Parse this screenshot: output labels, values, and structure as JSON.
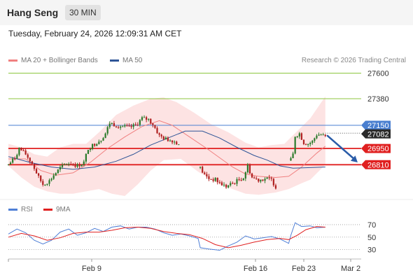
{
  "header": {
    "title": "Hang Seng",
    "interval": "30 MIN"
  },
  "subtitle": "Tuesday, February 24, 2026 12:09:31 AM CET",
  "legend": {
    "bollinger": {
      "label": "MA 20 + Bollinger Bands",
      "color": "#f08080"
    },
    "ma50": {
      "label": "MA 50",
      "color": "#2f5597"
    },
    "rsi": {
      "label": "RSI",
      "color": "#4f7fd6"
    },
    "rsi_ma": {
      "label": "9MA",
      "color": "#e02020"
    }
  },
  "credit": "Research © 2026 Trading Central",
  "colors": {
    "resistance": "#8cc63f",
    "pivot": "#4a7fd0",
    "support": "#e02020",
    "up_candle": "#2a7a2a",
    "down_candle": "#b02020",
    "arrow": "#2a5ca8",
    "band_fill": "#fde3e3"
  },
  "chart_data": [
    {
      "type": "candlestick",
      "title": "Hang Seng",
      "interval": "30 MIN",
      "x_ticks": [
        "Feb 9",
        "Feb 16",
        "Feb 23",
        "Mar 2"
      ],
      "ylim": [
        26540,
        27700
      ],
      "levels": [
        {
          "value": 27600,
          "label": "27600",
          "kind": "resistance"
        },
        {
          "value": 27380,
          "label": "27380",
          "kind": "resistance"
        },
        {
          "value": 27150,
          "label": "27150",
          "kind": "pivot"
        },
        {
          "value": 27082,
          "label": "27082",
          "kind": "last_price"
        },
        {
          "value": 26950,
          "label": "26950",
          "kind": "support"
        },
        {
          "value": 26810,
          "label": "26810",
          "kind": "support"
        }
      ],
      "segments": [
        {
          "start_bar": 0,
          "anchors": [
            [
              0,
              26810
            ],
            [
              3,
              26870
            ],
            [
              5,
              26950
            ],
            [
              8,
              26900
            ],
            [
              11,
              26820
            ],
            [
              14,
              26700
            ],
            [
              16,
              26640
            ],
            [
              19,
              26670
            ],
            [
              21,
              26720
            ],
            [
              24,
              26780
            ],
            [
              27,
              26820
            ],
            [
              29,
              26820
            ],
            [
              32,
              26800
            ],
            [
              35,
              26830
            ],
            [
              37,
              26950
            ],
            [
              40,
              26990
            ],
            [
              43,
              27030
            ],
            [
              45,
              27080
            ],
            [
              47,
              27170
            ],
            [
              50,
              27150
            ],
            [
              53,
              27140
            ],
            [
              56,
              27130
            ],
            [
              59,
              27150
            ],
            [
              62,
              27210
            ],
            [
              65,
              27200
            ],
            [
              67,
              27160
            ],
            [
              70,
              27060
            ],
            [
              73,
              27030
            ],
            [
              76,
              27020
            ],
            [
              79,
              26990
            ]
          ]
        },
        {
          "start_bar": 89,
          "anchors": [
            [
              0,
              26780
            ],
            [
              2,
              26720
            ],
            [
              4,
              26690
            ],
            [
              7,
              26680
            ],
            [
              10,
              26640
            ],
            [
              12,
              26620
            ],
            [
              15,
              26650
            ],
            [
              18,
              26680
            ],
            [
              20,
              26700
            ],
            [
              22,
              26800
            ],
            [
              24,
              26700
            ],
            [
              27,
              26680
            ],
            [
              30,
              26690
            ],
            [
              33,
              26680
            ],
            [
              35,
              26620
            ]
          ]
        },
        {
          "start_bar": 131,
          "anchors": [
            [
              0,
              26850
            ],
            [
              1,
              26900
            ],
            [
              2,
              27060
            ],
            [
              4,
              27080
            ],
            [
              6,
              27000
            ],
            [
              8,
              26990
            ],
            [
              10,
              27010
            ],
            [
              12,
              27070
            ],
            [
              14,
              27070
            ],
            [
              16,
              27050
            ]
          ]
        }
      ],
      "ma20": [
        [
          0,
          26860
        ],
        [
          8,
          26860
        ],
        [
          15,
          26760
        ],
        [
          22,
          26720
        ],
        [
          30,
          26740
        ],
        [
          38,
          26830
        ],
        [
          46,
          26950
        ],
        [
          54,
          27050
        ],
        [
          62,
          27140
        ],
        [
          70,
          27190
        ],
        [
          76,
          27150
        ],
        [
          84,
          27050
        ],
        [
          92,
          26950
        ],
        [
          98,
          26870
        ],
        [
          104,
          26790
        ],
        [
          110,
          26730
        ],
        [
          116,
          26710
        ],
        [
          124,
          26700
        ],
        [
          130,
          26710
        ],
        [
          136,
          26790
        ],
        [
          143,
          26910
        ],
        [
          147,
          26970
        ]
      ],
      "ma50": [
        [
          0,
          26880
        ],
        [
          10,
          26830
        ],
        [
          20,
          26790
        ],
        [
          30,
          26770
        ],
        [
          40,
          26790
        ],
        [
          50,
          26840
        ],
        [
          58,
          26900
        ],
        [
          66,
          26980
        ],
        [
          74,
          27040
        ],
        [
          82,
          27100
        ],
        [
          90,
          27100
        ],
        [
          98,
          27040
        ],
        [
          106,
          26960
        ],
        [
          114,
          26890
        ],
        [
          120,
          26850
        ],
        [
          126,
          26800
        ],
        [
          132,
          26780
        ],
        [
          147,
          26790
        ]
      ],
      "band_upper": [
        [
          0,
          26990
        ],
        [
          6,
          26960
        ],
        [
          12,
          26900
        ],
        [
          18,
          26880
        ],
        [
          24,
          26960
        ],
        [
          30,
          26990
        ],
        [
          36,
          26990
        ],
        [
          42,
          27090
        ],
        [
          50,
          27240
        ],
        [
          58,
          27320
        ],
        [
          66,
          27380
        ],
        [
          72,
          27390
        ],
        [
          78,
          27350
        ],
        [
          86,
          27260
        ],
        [
          94,
          27160
        ],
        [
          102,
          27090
        ],
        [
          110,
          27000
        ],
        [
          116,
          26960
        ],
        [
          122,
          26980
        ],
        [
          128,
          26990
        ],
        [
          134,
          27100
        ],
        [
          140,
          27210
        ],
        [
          147,
          27400
        ]
      ],
      "band_lower": [
        [
          0,
          26800
        ],
        [
          6,
          26700
        ],
        [
          12,
          26620
        ],
        [
          18,
          26580
        ],
        [
          24,
          26560
        ],
        [
          30,
          26560
        ],
        [
          36,
          26580
        ],
        [
          42,
          26600
        ],
        [
          48,
          26560
        ],
        [
          54,
          26540
        ],
        [
          60,
          26640
        ],
        [
          66,
          26760
        ],
        [
          72,
          26850
        ],
        [
          80,
          26860
        ],
        [
          88,
          26750
        ],
        [
          96,
          26660
        ],
        [
          104,
          26600
        ],
        [
          110,
          26560
        ],
        [
          116,
          26550
        ],
        [
          124,
          26570
        ],
        [
          130,
          26600
        ],
        [
          136,
          26650
        ],
        [
          140,
          26680
        ],
        [
          147,
          26810
        ]
      ],
      "forecast_arrow": {
        "from_bar": 148,
        "from_value": 27060,
        "to_bar": 162,
        "to_value": 26830
      }
    },
    {
      "type": "line",
      "series": [
        {
          "name": "RSI",
          "points": [
            [
              0,
              55
            ],
            [
              4,
              63
            ],
            [
              8,
              57
            ],
            [
              12,
              45
            ],
            [
              16,
              39
            ],
            [
              20,
              45
            ],
            [
              24,
              58
            ],
            [
              28,
              63
            ],
            [
              32,
              53
            ],
            [
              36,
              57
            ],
            [
              40,
              64
            ],
            [
              44,
              59
            ],
            [
              48,
              66
            ],
            [
              52,
              68
            ],
            [
              56,
              63
            ],
            [
              60,
              66
            ],
            [
              64,
              66
            ],
            [
              68,
              63
            ],
            [
              72,
              57
            ],
            [
              76,
              53
            ],
            [
              80,
              55
            ],
            [
              84,
              52
            ],
            [
              88,
              48
            ],
            [
              89,
              33
            ],
            [
              93,
              31
            ],
            [
              98,
              29
            ],
            [
              102,
              36
            ],
            [
              106,
              42
            ],
            [
              110,
              52
            ],
            [
              114,
              47
            ],
            [
              118,
              49
            ],
            [
              122,
              51
            ],
            [
              126,
              47
            ],
            [
              130,
              40
            ],
            [
              131,
              53
            ],
            [
              133,
              73
            ],
            [
              136,
              67
            ],
            [
              140,
              68
            ],
            [
              143,
              65
            ],
            [
              147,
              66
            ]
          ]
        },
        {
          "name": "9MA",
          "points": [
            [
              0,
              50
            ],
            [
              6,
              56
            ],
            [
              12,
              52
            ],
            [
              18,
              45
            ],
            [
              24,
              49
            ],
            [
              30,
              56
            ],
            [
              36,
              58
            ],
            [
              42,
              58
            ],
            [
              48,
              61
            ],
            [
              54,
              65
            ],
            [
              60,
              66
            ],
            [
              66,
              64
            ],
            [
              72,
              59
            ],
            [
              78,
              56
            ],
            [
              84,
              54
            ],
            [
              90,
              48
            ],
            [
              96,
              38
            ],
            [
              102,
              33
            ],
            [
              108,
              37
            ],
            [
              114,
              42
            ],
            [
              120,
              46
            ],
            [
              126,
              48
            ],
            [
              130,
              46
            ],
            [
              134,
              53
            ],
            [
              138,
              62
            ],
            [
              143,
              67
            ],
            [
              147,
              66
            ]
          ]
        }
      ],
      "ylim": [
        15,
        80
      ],
      "y_ticks": [
        70,
        50,
        30
      ]
    }
  ]
}
